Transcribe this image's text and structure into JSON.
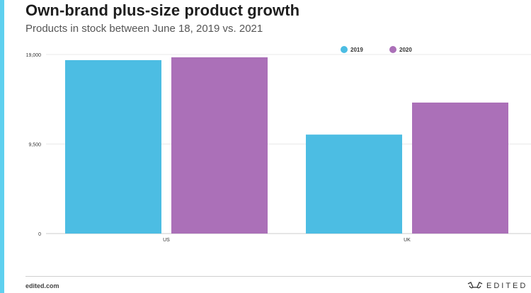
{
  "header": {
    "title": "Own-brand plus-size product growth",
    "subtitle": "Products in stock between June 18, 2019 vs. 2021"
  },
  "footer": {
    "source": "edited.com",
    "logo_text": "EDITED",
    "logo_icon": "edited-glasses-icon"
  },
  "colors": {
    "accent_bar": "#5fd0ef",
    "series_2019": "#4cbde3",
    "series_2020": "#ab70b8"
  },
  "chart_data": {
    "type": "bar",
    "categories": [
      "US",
      "UK"
    ],
    "series": [
      {
        "name": "2019",
        "values": [
          18400,
          10500
        ],
        "color": "#4cbde3"
      },
      {
        "name": "2020",
        "values": [
          18700,
          13900
        ],
        "color": "#ab70b8"
      }
    ],
    "yticks": [
      {
        "value": 0,
        "label": "0"
      },
      {
        "value": 9500,
        "label": "9,500"
      },
      {
        "value": 19000,
        "label": "19,000"
      }
    ],
    "ylim": [
      0,
      19000
    ],
    "grid": true,
    "legend": "top-right",
    "title": "",
    "xlabel": "",
    "ylabel": ""
  }
}
